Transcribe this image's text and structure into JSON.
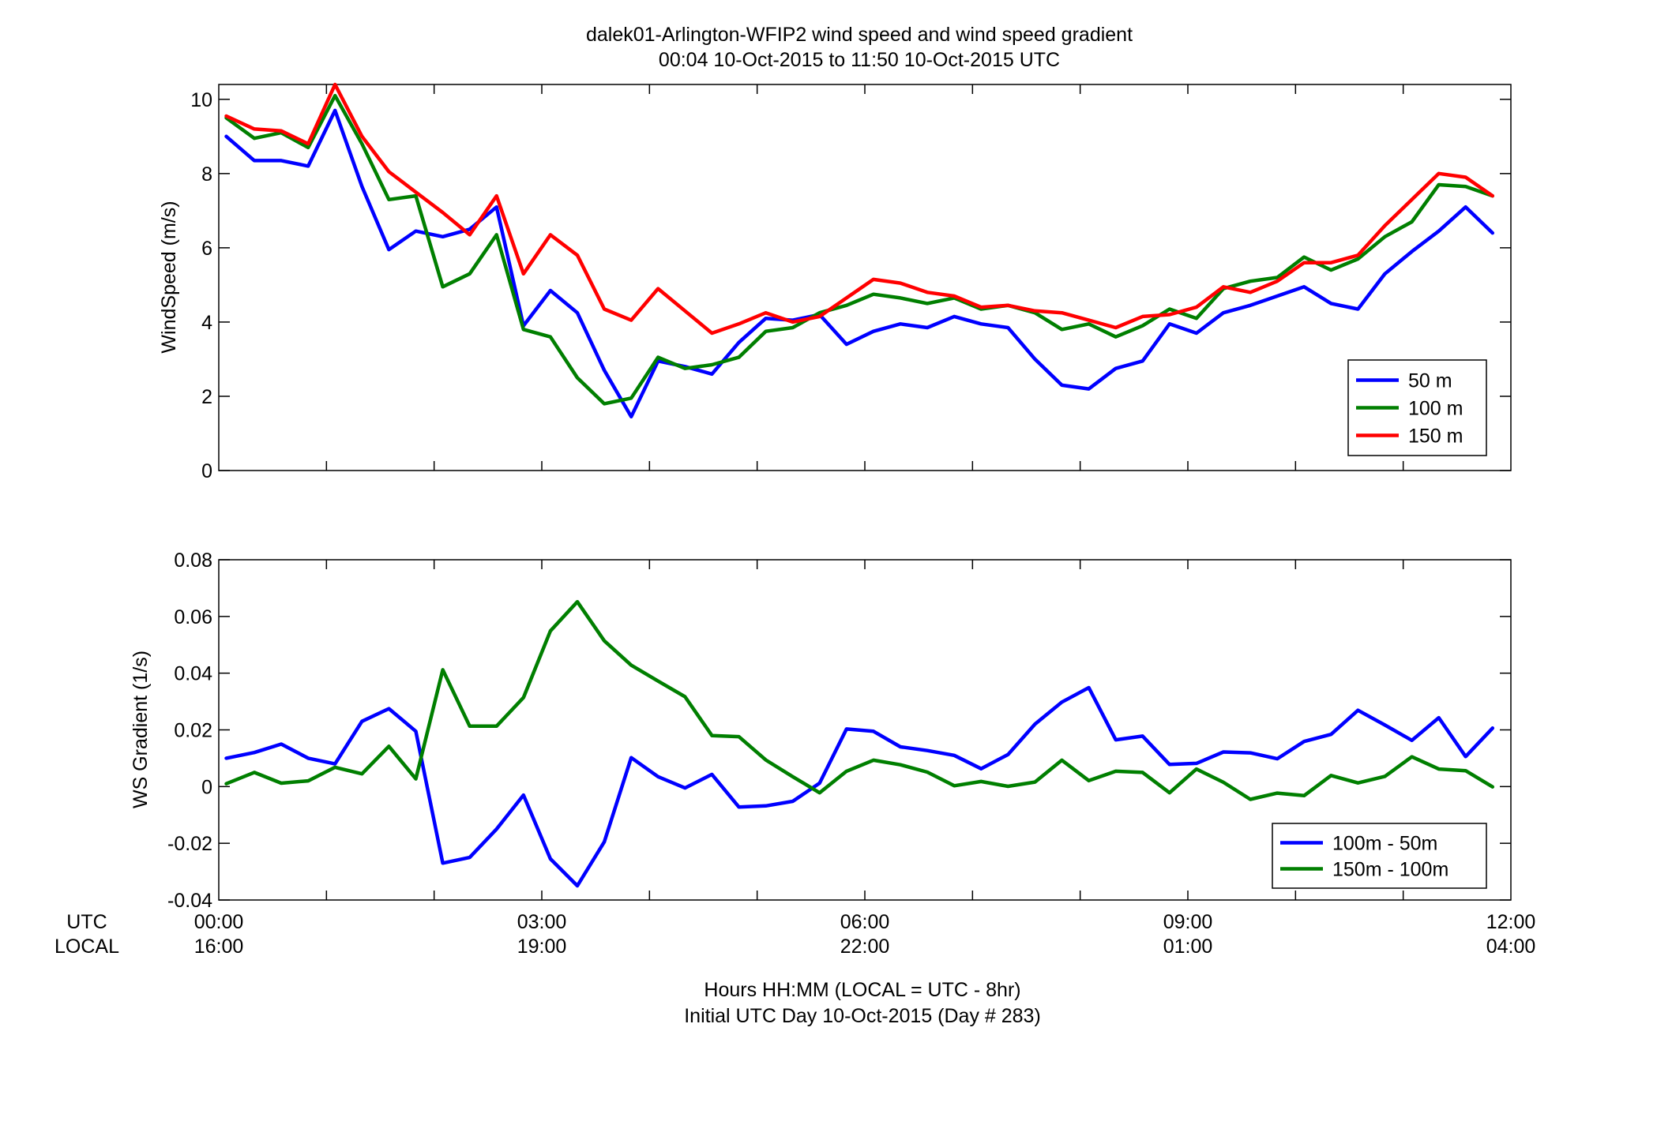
{
  "chart_data": [
    {
      "type": "line",
      "title": "dalek01-Arlington-WFIP2  wind speed and wind speed gradient",
      "subtitle": "00:04 10-Oct-2015 to 11:50 10-Oct-2015  UTC",
      "xlabel": "",
      "ylabel": "WindSpeed (m/s)",
      "xlim": [
        0,
        12
      ],
      "ylim": [
        0,
        10.4
      ],
      "yticks": [
        "0",
        "2",
        "4",
        "6",
        "8",
        "10"
      ],
      "ytick_values": [
        0,
        2,
        4,
        6,
        8,
        10
      ],
      "legend_position": "bottom-right",
      "grid": false,
      "x_hours": [
        0.07,
        0.33,
        0.58,
        0.83,
        1.08,
        1.33,
        1.58,
        1.83,
        2.08,
        2.33,
        2.58,
        2.83,
        3.08,
        3.33,
        3.58,
        3.83,
        4.08,
        4.33,
        4.58,
        4.83,
        5.08,
        5.33,
        5.58,
        5.83,
        6.08,
        6.33,
        6.58,
        6.83,
        7.08,
        7.33,
        7.58,
        7.83,
        8.08,
        8.33,
        8.58,
        8.83,
        9.08,
        9.33,
        9.58,
        9.83,
        10.08,
        10.33,
        10.58,
        10.83,
        11.08,
        11.33,
        11.58,
        11.83
      ],
      "series": [
        {
          "name": "50 m",
          "color": "#0000ff",
          "values": [
            9.0,
            8.35,
            8.35,
            8.2,
            9.7,
            7.65,
            5.95,
            6.45,
            6.3,
            6.5,
            7.1,
            3.9,
            4.85,
            4.25,
            2.7,
            1.45,
            2.95,
            2.8,
            2.6,
            3.45,
            4.1,
            4.05,
            4.2,
            3.4,
            3.75,
            3.95,
            3.85,
            4.15,
            3.95,
            3.85,
            3.0,
            2.3,
            2.2,
            2.75,
            2.95,
            3.95,
            3.7,
            4.25,
            4.45,
            4.7,
            4.95,
            4.5,
            4.35,
            5.3,
            5.9,
            6.45,
            7.1,
            6.4
          ]
        },
        {
          "name": "100 m",
          "color": "#007f00",
          "values": [
            9.5,
            8.95,
            9.1,
            8.7,
            10.1,
            8.8,
            7.3,
            7.4,
            4.95,
            5.3,
            6.35,
            3.8,
            3.6,
            2.5,
            1.8,
            1.95,
            3.05,
            2.75,
            2.85,
            3.05,
            3.75,
            3.85,
            4.25,
            4.45,
            4.75,
            4.65,
            4.5,
            4.65,
            4.35,
            4.45,
            4.25,
            3.8,
            3.95,
            3.6,
            3.9,
            4.35,
            4.1,
            4.9,
            5.1,
            5.2,
            5.75,
            5.4,
            5.7,
            6.3,
            6.7,
            7.7,
            7.65,
            7.4
          ]
        },
        {
          "name": "150 m",
          "color": "#ff0000",
          "values": [
            9.55,
            9.2,
            9.15,
            8.8,
            10.4,
            9.0,
            8.05,
            7.5,
            6.95,
            6.35,
            7.4,
            5.3,
            6.35,
            5.8,
            4.35,
            4.05,
            4.9,
            4.3,
            3.7,
            3.95,
            4.25,
            4.0,
            4.15,
            4.65,
            5.15,
            5.05,
            4.8,
            4.7,
            4.4,
            4.45,
            4.3,
            4.25,
            4.05,
            3.85,
            4.15,
            4.2,
            4.4,
            4.95,
            4.8,
            5.1,
            5.6,
            5.6,
            5.8,
            6.6,
            7.3,
            8.0,
            7.9,
            7.4
          ]
        }
      ]
    },
    {
      "type": "line",
      "xlabel": "Hours HH:MM  (LOCAL = UTC - 8hr)",
      "xlabel2": "Initial UTC Day 10-Oct-2015 (Day # 283)",
      "ylabel": "WS Gradient (1/s)",
      "xlim": [
        0,
        12
      ],
      "ylim": [
        -0.04,
        0.08
      ],
      "yticks": [
        "-0.04",
        "-0.02",
        "0",
        "0.02",
        "0.04",
        "0.06",
        "0.08"
      ],
      "ytick_values": [
        -0.04,
        -0.02,
        0,
        0.02,
        0.04,
        0.06,
        0.08
      ],
      "xtick_values": [
        0,
        3,
        6,
        9,
        12
      ],
      "xticks_utc": [
        "00:00",
        "03:00",
        "06:00",
        "09:00",
        "12:00"
      ],
      "xticks_local": [
        "16:00",
        "19:00",
        "22:00",
        "01:00",
        "04:00"
      ],
      "row_label_utc": "UTC",
      "row_label_local": "LOCAL",
      "legend_position": "bottom-right",
      "grid": false,
      "x_hours": [
        0.07,
        0.33,
        0.58,
        0.83,
        1.08,
        1.33,
        1.58,
        1.83,
        2.08,
        2.33,
        2.58,
        2.83,
        3.08,
        3.33,
        3.58,
        3.83,
        4.08,
        4.33,
        4.58,
        4.83,
        5.08,
        5.33,
        5.58,
        5.83,
        6.08,
        6.33,
        6.58,
        6.83,
        7.08,
        7.33,
        7.58,
        7.83,
        8.08,
        8.33,
        8.58,
        8.83,
        9.08,
        9.33,
        9.58,
        9.83,
        10.08,
        10.33,
        10.58,
        10.83,
        11.08,
        11.33,
        11.58,
        11.83
      ],
      "series": [
        {
          "name": "100m - 50m",
          "color": "#0000ff",
          "values": [
            0.01,
            0.012,
            0.015,
            0.01,
            0.008,
            0.023,
            0.0275,
            0.0195,
            -0.027,
            -0.025,
            -0.015,
            -0.003,
            -0.0255,
            -0.035,
            -0.0195,
            0.0102,
            0.0035,
            -0.0005,
            0.0043,
            -0.0072,
            -0.0068,
            -0.0052,
            0.0012,
            0.0203,
            0.0195,
            0.014,
            0.0127,
            0.011,
            0.0063,
            0.0113,
            0.022,
            0.0298,
            0.0349,
            0.0165,
            0.0178,
            0.0078,
            0.0082,
            0.0122,
            0.0119,
            0.0098,
            0.0159,
            0.0184,
            0.0269,
            0.0217,
            0.0163,
            0.0243,
            0.0106,
            0.0206
          ]
        },
        {
          "name": "150m - 100m",
          "color": "#007f00",
          "values": [
            0.001,
            0.005,
            0.0012,
            0.002,
            0.0068,
            0.0045,
            0.0142,
            0.0027,
            0.0412,
            0.0213,
            0.0213,
            0.0314,
            0.0549,
            0.0652,
            0.0514,
            0.0428,
            0.0372,
            0.0317,
            0.018,
            0.0176,
            0.0094,
            0.0035,
            -0.0022,
            0.0054,
            0.0093,
            0.0077,
            0.0051,
            0.0003,
            0.0018,
            0.0001,
            0.0016,
            0.0093,
            0.0021,
            0.0054,
            0.005,
            -0.0022,
            0.0062,
            0.0015,
            -0.0045,
            -0.0023,
            -0.0032,
            0.0039,
            0.0013,
            0.0036,
            0.0105,
            0.0062,
            0.0056,
            -0.0001
          ]
        }
      ]
    }
  ]
}
